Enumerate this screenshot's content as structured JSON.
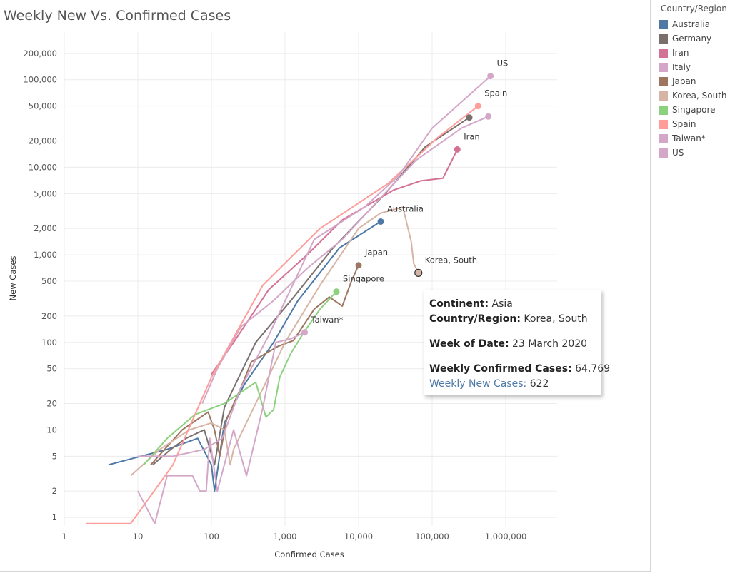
{
  "title": "Weekly New Vs. Confirmed Cases",
  "legend": {
    "title": "Country/Region",
    "items": [
      {
        "label": "Australia",
        "color": "#4e79a7"
      },
      {
        "label": "Germany",
        "color": "#79706e"
      },
      {
        "label": "Iran",
        "color": "#d37295"
      },
      {
        "label": "Italy",
        "color": "#d4a6c8"
      },
      {
        "label": "Japan",
        "color": "#9d7660"
      },
      {
        "label": "Korea, South",
        "color": "#d7b5a6"
      },
      {
        "label": "Singapore",
        "color": "#8cd17d"
      },
      {
        "label": "Spain",
        "color": "#ff9d9a"
      },
      {
        "label": "Taiwan*",
        "color": "#d4a6c8"
      },
      {
        "label": "US",
        "color": "#d4a6c8"
      }
    ]
  },
  "tooltip": {
    "continent_label": "Continent:",
    "continent_value": "Asia",
    "country_label": "Country/Region:",
    "country_value": "Korea, South",
    "week_label": "Week of Date:",
    "week_value": "23 March 2020",
    "confirmed_label": "Weekly Confirmed Cases:",
    "confirmed_value": "64,769",
    "new_label": "Weekly New Cases:",
    "new_value": "622"
  },
  "chart_data": {
    "type": "line",
    "title": "Weekly New Vs. Confirmed Cases",
    "xlabel": "Confirmed Cases",
    "ylabel": "New Cases",
    "xscale": "log",
    "yscale": "log",
    "xlim": [
      1,
      5000000
    ],
    "ylim": [
      0.8,
      350000
    ],
    "xticks": [
      {
        "value": 1,
        "label": "1"
      },
      {
        "value": 10,
        "label": "10"
      },
      {
        "value": 100,
        "label": "100"
      },
      {
        "value": 1000,
        "label": "1,000"
      },
      {
        "value": 10000,
        "label": "10,000"
      },
      {
        "value": 100000,
        "label": "100,000"
      },
      {
        "value": 1000000,
        "label": "1,000,000"
      }
    ],
    "yticks": [
      {
        "value": 1,
        "label": "1"
      },
      {
        "value": 2,
        "label": "2"
      },
      {
        "value": 5,
        "label": "5"
      },
      {
        "value": 10,
        "label": "10"
      },
      {
        "value": 20,
        "label": "20"
      },
      {
        "value": 50,
        "label": "50"
      },
      {
        "value": 100,
        "label": "100"
      },
      {
        "value": 200,
        "label": "200"
      },
      {
        "value": 500,
        "label": "500"
      },
      {
        "value": 1000,
        "label": "1,000"
      },
      {
        "value": 2000,
        "label": "2,000"
      },
      {
        "value": 5000,
        "label": "5,000"
      },
      {
        "value": 10000,
        "label": "10,000"
      },
      {
        "value": 20000,
        "label": "20,000"
      },
      {
        "value": 50000,
        "label": "50,000"
      },
      {
        "value": 100000,
        "label": "100,000"
      },
      {
        "value": 200000,
        "label": "200,000"
      }
    ],
    "grid": true,
    "legend_position": "right",
    "series": [
      {
        "name": "Australia",
        "color": "#4e79a7",
        "label": "Australia",
        "points": [
          [
            4,
            4
          ],
          [
            25,
            6
          ],
          [
            65,
            8
          ],
          [
            100,
            4
          ],
          [
            110,
            2
          ],
          [
            150,
            12
          ],
          [
            280,
            33
          ],
          [
            700,
            100
          ],
          [
            1500,
            300
          ],
          [
            5500,
            1200
          ],
          [
            20000,
            2400
          ]
        ]
      },
      {
        "name": "Germany",
        "color": "#79706e",
        "label": "",
        "points": [
          [
            16,
            4
          ],
          [
            28,
            6
          ],
          [
            45,
            8
          ],
          [
            80,
            10
          ],
          [
            110,
            4
          ],
          [
            150,
            18
          ],
          [
            200,
            30
          ],
          [
            400,
            100
          ],
          [
            1200,
            300
          ],
          [
            4500,
            1200
          ],
          [
            23000,
            5000
          ],
          [
            80000,
            17000
          ],
          [
            320000,
            37000
          ]
        ]
      },
      {
        "name": "Iran",
        "color": "#d37295",
        "label": "Iran",
        "points": [
          [
            100,
            43
          ],
          [
            200,
            100
          ],
          [
            600,
            400
          ],
          [
            2000,
            1000
          ],
          [
            6000,
            2500
          ],
          [
            30000,
            5500
          ],
          [
            70000,
            7000
          ],
          [
            140000,
            7500
          ],
          [
            220000,
            16000
          ]
        ]
      },
      {
        "name": "Italy",
        "color": "#d4a6c8",
        "label": "",
        "points": [
          [
            75,
            20
          ],
          [
            120,
            50
          ],
          [
            250,
            150
          ],
          [
            700,
            300
          ],
          [
            2000,
            700
          ],
          [
            6000,
            1500
          ],
          [
            20000,
            4500
          ],
          [
            60000,
            12000
          ],
          [
            250000,
            28000
          ],
          [
            580000,
            38000
          ]
        ]
      },
      {
        "name": "Japan",
        "color": "#9d7660",
        "label": "Japan",
        "points": [
          [
            15,
            4
          ],
          [
            40,
            10
          ],
          [
            90,
            16
          ],
          [
            110,
            10
          ],
          [
            130,
            5
          ],
          [
            160,
            13
          ],
          [
            250,
            30
          ],
          [
            350,
            60
          ],
          [
            800,
            90
          ],
          [
            1300,
            105
          ],
          [
            2500,
            240
          ],
          [
            4000,
            330
          ],
          [
            6000,
            260
          ],
          [
            8000,
            500
          ],
          [
            10000,
            760
          ]
        ]
      },
      {
        "name": "Korea, South",
        "color": "#d7b5a6",
        "label": "Korea, South",
        "points": [
          [
            8,
            3
          ],
          [
            20,
            6
          ],
          [
            50,
            10
          ],
          [
            100,
            12
          ],
          [
            150,
            10
          ],
          [
            180,
            4
          ],
          [
            200,
            6
          ],
          [
            400,
            20
          ],
          [
            1000,
            100
          ],
          [
            3000,
            450
          ],
          [
            10000,
            2000
          ],
          [
            20000,
            3000
          ],
          [
            40000,
            3500
          ],
          [
            52000,
            1400
          ],
          [
            56000,
            800
          ],
          [
            65000,
            622
          ]
        ]
      },
      {
        "name": "Singapore",
        "color": "#8cd17d",
        "label": "Singapore",
        "points": [
          [
            12,
            4
          ],
          [
            25,
            8
          ],
          [
            60,
            15
          ],
          [
            150,
            20
          ],
          [
            400,
            35
          ],
          [
            550,
            14
          ],
          [
            700,
            17
          ],
          [
            850,
            40
          ],
          [
            1200,
            75
          ],
          [
            1800,
            130
          ],
          [
            3000,
            240
          ],
          [
            5000,
            380
          ]
        ]
      },
      {
        "name": "Spain",
        "color": "#ff9d9a",
        "label": "Spain",
        "points": [
          [
            2,
            0.85
          ],
          [
            8,
            0.85
          ],
          [
            30,
            4
          ],
          [
            100,
            40
          ],
          [
            500,
            450
          ],
          [
            3000,
            2000
          ],
          [
            25000,
            6500
          ],
          [
            120000,
            22000
          ],
          [
            420000,
            50000
          ]
        ]
      },
      {
        "name": "Taiwan*",
        "color": "#d4a6c8",
        "label": "Taiwan*",
        "points": [
          [
            10,
            2
          ],
          [
            17,
            0.85
          ],
          [
            25,
            3
          ],
          [
            55,
            3
          ],
          [
            70,
            2
          ],
          [
            85,
            2
          ],
          [
            95,
            8
          ],
          [
            120,
            2
          ],
          [
            200,
            10
          ],
          [
            300,
            3
          ],
          [
            500,
            18
          ],
          [
            750,
            100
          ],
          [
            1200,
            110
          ],
          [
            1850,
            130
          ]
        ]
      },
      {
        "name": "US",
        "color": "#d4a6c8",
        "label": "US",
        "points": [
          [
            10,
            5
          ],
          [
            30,
            5
          ],
          [
            80,
            6
          ],
          [
            140,
            8
          ],
          [
            250,
            30
          ],
          [
            600,
            120
          ],
          [
            2500,
            1500
          ],
          [
            12000,
            3500
          ],
          [
            35000,
            8000
          ],
          [
            100000,
            28000
          ],
          [
            620000,
            110000
          ]
        ]
      }
    ],
    "highlight": {
      "series": "Korea, South",
      "x": 64769,
      "y": 622
    }
  }
}
